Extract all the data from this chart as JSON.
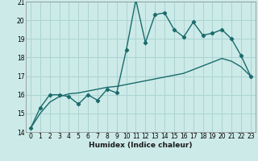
{
  "xlabel": "Humidex (Indice chaleur)",
  "bg_color": "#cceae8",
  "grid_color": "#aad4d2",
  "line_color": "#1a6b6b",
  "x_data": [
    0,
    1,
    2,
    3,
    4,
    5,
    6,
    7,
    8,
    9,
    10,
    11,
    12,
    13,
    14,
    15,
    16,
    17,
    18,
    19,
    20,
    21,
    22,
    23
  ],
  "y_main": [
    14.2,
    15.3,
    16.0,
    16.0,
    15.9,
    15.5,
    16.0,
    15.7,
    16.3,
    16.1,
    18.4,
    21.1,
    18.8,
    20.3,
    20.4,
    19.5,
    19.1,
    19.9,
    19.2,
    19.3,
    19.5,
    19.0,
    18.1,
    17.0
  ],
  "y_smooth": [
    14.2,
    15.0,
    15.6,
    15.9,
    16.05,
    16.1,
    16.2,
    16.3,
    16.4,
    16.45,
    16.55,
    16.65,
    16.75,
    16.85,
    16.95,
    17.05,
    17.15,
    17.35,
    17.55,
    17.75,
    17.95,
    17.8,
    17.5,
    17.0
  ],
  "ylim": [
    14,
    21
  ],
  "xlim": [
    -0.5,
    23.5
  ],
  "yticks": [
    14,
    15,
    16,
    17,
    18,
    19,
    20,
    21
  ],
  "xticks": [
    0,
    1,
    2,
    3,
    4,
    5,
    6,
    7,
    8,
    9,
    10,
    11,
    12,
    13,
    14,
    15,
    16,
    17,
    18,
    19,
    20,
    21,
    22,
    23
  ],
  "tick_fontsize": 5.5,
  "xlabel_fontsize": 6.5
}
